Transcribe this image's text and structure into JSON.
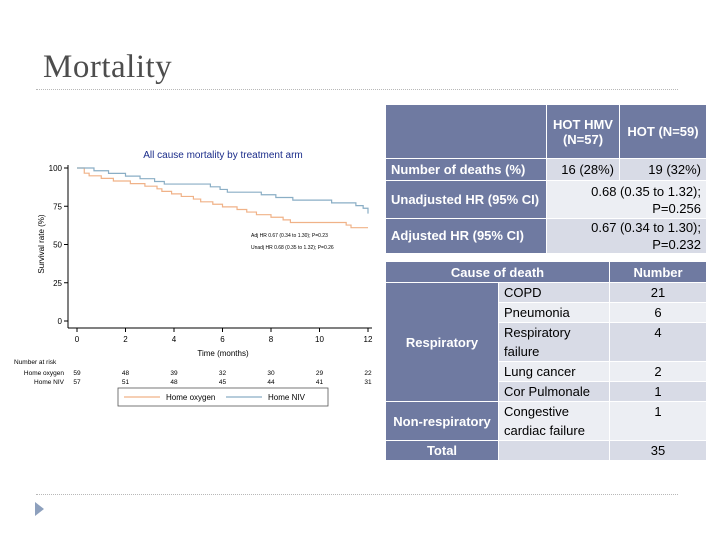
{
  "slide": {
    "title": "Mortality"
  },
  "chart_data": {
    "type": "line",
    "title": "All cause mortality by treatment arm",
    "xlabel": "Time (months)",
    "ylabel": "Survival rate (%)",
    "xlim": [
      0,
      12
    ],
    "ylim": [
      0,
      100
    ],
    "xticks": [
      0,
      2,
      4,
      6,
      8,
      10,
      12
    ],
    "yticks": [
      0,
      25,
      50,
      75,
      100
    ],
    "series": [
      {
        "name": "Home oxygen",
        "color": "#f0b288",
        "points": [
          [
            0,
            100
          ],
          [
            0.3,
            96.6
          ],
          [
            0.5,
            94.9
          ],
          [
            1.0,
            93.2
          ],
          [
            1.5,
            91.5
          ],
          [
            2.2,
            89.8
          ],
          [
            2.8,
            88.1
          ],
          [
            3.3,
            86.4
          ],
          [
            3.5,
            84.7
          ],
          [
            3.9,
            83.1
          ],
          [
            4.3,
            81.4
          ],
          [
            4.8,
            79.7
          ],
          [
            5.1,
            77.9
          ],
          [
            5.6,
            76.3
          ],
          [
            6.0,
            74.6
          ],
          [
            6.6,
            72.9
          ],
          [
            7.0,
            71.2
          ],
          [
            7.4,
            69.5
          ],
          [
            8.0,
            67.8
          ],
          [
            8.5,
            66.1
          ],
          [
            8.8,
            64.4
          ],
          [
            10.8,
            64.4
          ],
          [
            11.1,
            62.7
          ],
          [
            11.3,
            61.0
          ],
          [
            12.0,
            61.0
          ]
        ]
      },
      {
        "name": "Home NIV",
        "color": "#8aaec5",
        "points": [
          [
            0,
            100
          ],
          [
            0.7,
            98.2
          ],
          [
            1.3,
            96.5
          ],
          [
            2.0,
            94.7
          ],
          [
            2.6,
            93.0
          ],
          [
            3.2,
            91.2
          ],
          [
            3.6,
            89.5
          ],
          [
            5.1,
            89.5
          ],
          [
            5.5,
            87.7
          ],
          [
            5.9,
            86.0
          ],
          [
            6.2,
            84.2
          ],
          [
            7.3,
            84.2
          ],
          [
            7.6,
            82.5
          ],
          [
            8.2,
            80.7
          ],
          [
            8.9,
            79.0
          ],
          [
            10.2,
            79.0
          ],
          [
            10.5,
            77.2
          ],
          [
            11.2,
            77.2
          ],
          [
            11.5,
            75.4
          ],
          [
            11.8,
            73.7
          ],
          [
            12.0,
            70.2
          ]
        ]
      }
    ],
    "annotations": [
      "Adj HR 0.67 (0.34 to 1.30); P=0.23",
      "Unadj HR 0.68 (0.35 to 1.32); P=0.26"
    ],
    "risk_table": {
      "header": "Number at risk",
      "rows": [
        {
          "label": "Home oxygen",
          "values": [
            59,
            48,
            39,
            32,
            30,
            29,
            22
          ]
        },
        {
          "label": "Home NIV",
          "values": [
            57,
            51,
            48,
            45,
            44,
            41,
            31
          ]
        }
      ]
    },
    "legend": [
      "Home oxygen",
      "Home NIV"
    ],
    "legend_position": "bottom"
  },
  "table_hr": {
    "headers": [
      "",
      "HOT HMV (N=57)",
      "HOT (N=59)"
    ],
    "rows": [
      {
        "label": "Number of deaths (%)",
        "hmv": "16 (28%)",
        "hot": "19 (32%)"
      },
      {
        "label": "Unadjusted HR (95% CI)",
        "value": "0.68 (0.35 to 1.32); P=0.256"
      },
      {
        "label": "Adjusted HR (95% CI)",
        "value": "0.67 (0.34 to 1.30); P=0.232"
      }
    ]
  },
  "table_cause": {
    "headers": [
      "Cause of death",
      "Number"
    ],
    "groups": {
      "respiratory": "Respiratory",
      "non_respiratory": "Non-respiratory",
      "total": "Total"
    },
    "rows": [
      {
        "cause": "COPD",
        "number": "21"
      },
      {
        "cause": "Pneumonia",
        "number": "6"
      },
      {
        "cause": "Respiratory failure",
        "number": "4"
      },
      {
        "cause": "Lung cancer",
        "number": "2"
      },
      {
        "cause": "Cor Pulmonale",
        "number": "1"
      },
      {
        "cause": "Congestive cardiac failure",
        "number": "1"
      }
    ],
    "total": "35"
  }
}
